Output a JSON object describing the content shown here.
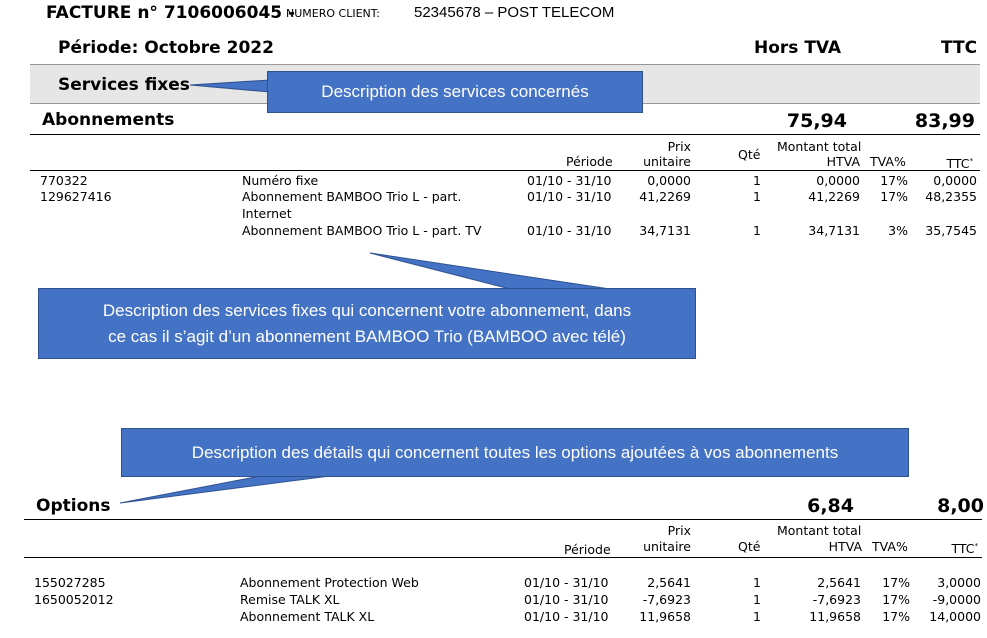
{
  "invoice": {
    "title": "FACTURE n° 7106006045 -",
    "client_label": "NUMERO CLIENT:",
    "client_value": "52345678 –  POST TELECOM",
    "period": "Période: Octobre 2022",
    "col_htva": "Hors TVA",
    "col_ttc": "TTC"
  },
  "services_fixes": {
    "label": "Services fixes"
  },
  "abonnements": {
    "label": "Abonnements",
    "total_htva": "75,94",
    "total_ttc": "83,99",
    "headers": {
      "periode": "Période",
      "prix_1": "Prix",
      "prix_2": "unitaire",
      "qte": "Qté",
      "montant_1": "Montant total",
      "montant_2": "HTVA",
      "tva": "TVA%",
      "ttc": "TTC"
    },
    "rows": [
      {
        "id": "770322",
        "desc": "Numéro fixe",
        "desc2": "",
        "periode": "01/10 - 31/10",
        "prix": "0,0000",
        "qte": "1",
        "montant": "0,0000",
        "tva": "17%",
        "ttc": "0,0000"
      },
      {
        "id": "129627416",
        "desc": "Abonnement BAMBOO Trio L - part.",
        "desc2": "Internet",
        "periode": "01/10 - 31/10",
        "prix": "41,2269",
        "qte": "1",
        "montant": "41,2269",
        "tva": "17%",
        "ttc": "48,2355"
      },
      {
        "id": "",
        "desc": "Abonnement BAMBOO Trio L - part. TV",
        "desc2": "",
        "periode": "01/10 - 31/10",
        "prix": "34,7131",
        "qte": "1",
        "montant": "34,7131",
        "tva": "3%",
        "ttc": "35,7545"
      }
    ]
  },
  "options": {
    "label": "Options",
    "total_htva": "6,84",
    "total_ttc": "8,00",
    "headers": {
      "periode": "Période",
      "prix_1": "Prix",
      "prix_2": "unitaire",
      "qte": "Qté",
      "montant_1": "Montant total",
      "montant_2": "HTVA",
      "tva": "TVA%",
      "ttc": "TTC"
    },
    "rows": [
      {
        "id": "155027285",
        "desc": "Abonnement Protection Web",
        "periode": "01/10 - 31/10",
        "prix": "2,5641",
        "qte": "1",
        "montant": "2,5641",
        "tva": "17%",
        "ttc": "3,0000"
      },
      {
        "id": "1650052012",
        "desc": "Remise TALK XL",
        "periode": "01/10 - 31/10",
        "prix": "-7,6923",
        "qte": "1",
        "montant": "-7,6923",
        "tva": "17%",
        "ttc": "-9,0000"
      },
      {
        "id": "",
        "desc": "Abonnement TALK XL",
        "periode": "01/10 - 31/10",
        "prix": "11,9658",
        "qte": "1",
        "montant": "11,9658",
        "tva": "17%",
        "ttc": "14,0000"
      }
    ]
  },
  "callouts": {
    "services": "Description des services concernés",
    "abonnement_1": "Description des services fixes qui concernent votre abonnement, dans",
    "abonnement_2": "ce cas il s’agit d’un abonnement BAMBOO Trio (BAMBOO avec télé)",
    "options": "Description des détails qui concernent toutes les options ajoutées à vos abonnements"
  },
  "colors": {
    "callout_fill": "#4472c4",
    "band_gray": "#e6e6e6"
  }
}
